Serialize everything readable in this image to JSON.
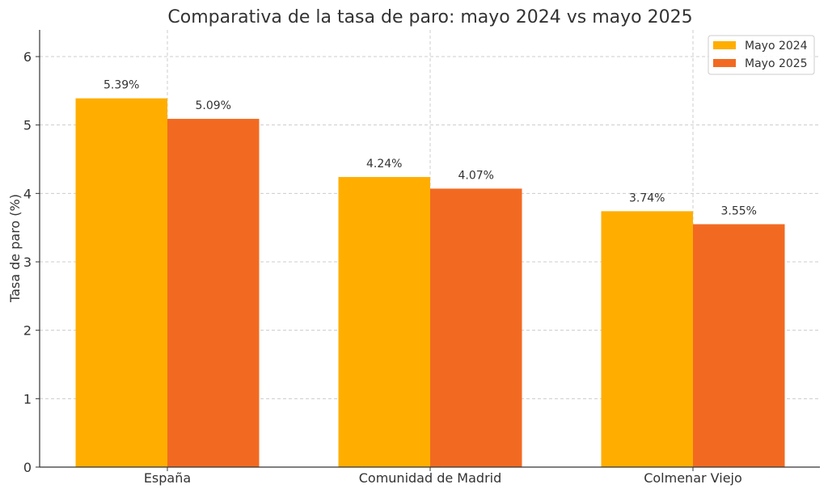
{
  "chart_data": {
    "type": "bar",
    "title": "Comparativa de la tasa de paro: mayo 2024 vs mayo 2025",
    "xlabel": "",
    "ylabel": "Tasa de paro (%)",
    "categories": [
      "España",
      "Comunidad de Madrid",
      "Colmenar Viejo"
    ],
    "series": [
      {
        "name": "Mayo 2024",
        "values": [
          5.39,
          4.24,
          3.74
        ],
        "labels": [
          "5.39%",
          "4.24%",
          "3.74%"
        ],
        "color": "#FFAE00"
      },
      {
        "name": "Mayo 2025",
        "values": [
          5.09,
          4.07,
          3.55
        ],
        "labels": [
          "5.09%",
          "4.07%",
          "3.55%"
        ],
        "color": "#F26A21"
      }
    ],
    "ylim": [
      0,
      6.39
    ],
    "yticks": [
      "0",
      "1",
      "2",
      "3",
      "4",
      "5",
      "6"
    ],
    "grid": true,
    "legend_position": "top-right"
  }
}
